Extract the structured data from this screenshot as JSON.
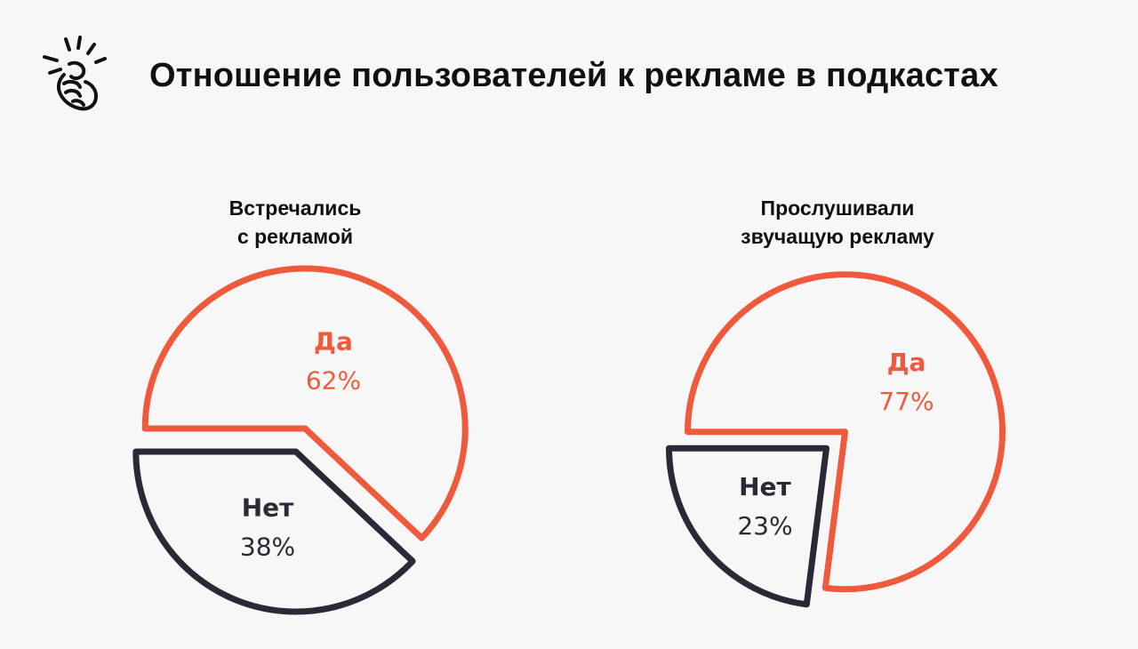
{
  "title": "Отношение пользователей к рекламе в подкастах",
  "icon": "snapping-fingers-icon",
  "colors": {
    "accent": "#f05a3c",
    "dark": "#2a2a36",
    "background": "#f7f7f7",
    "text": "#111111"
  },
  "chart_data": [
    {
      "type": "pie",
      "title_lines": [
        "Встречались",
        "с рекламой"
      ],
      "slices": [
        {
          "name": "Да",
          "label": "62%",
          "value": 62,
          "color": "#f05a3c"
        },
        {
          "name": "Нет",
          "label": "38%",
          "value": 38,
          "color": "#2a2a36"
        }
      ]
    },
    {
      "type": "pie",
      "title_lines": [
        "Прослушивали",
        "звучащую рекламу"
      ],
      "slices": [
        {
          "name": "Да",
          "label": "77%",
          "value": 77,
          "color": "#f05a3c"
        },
        {
          "name": "Нет",
          "label": "23%",
          "value": 23,
          "color": "#2a2a36"
        }
      ]
    }
  ]
}
